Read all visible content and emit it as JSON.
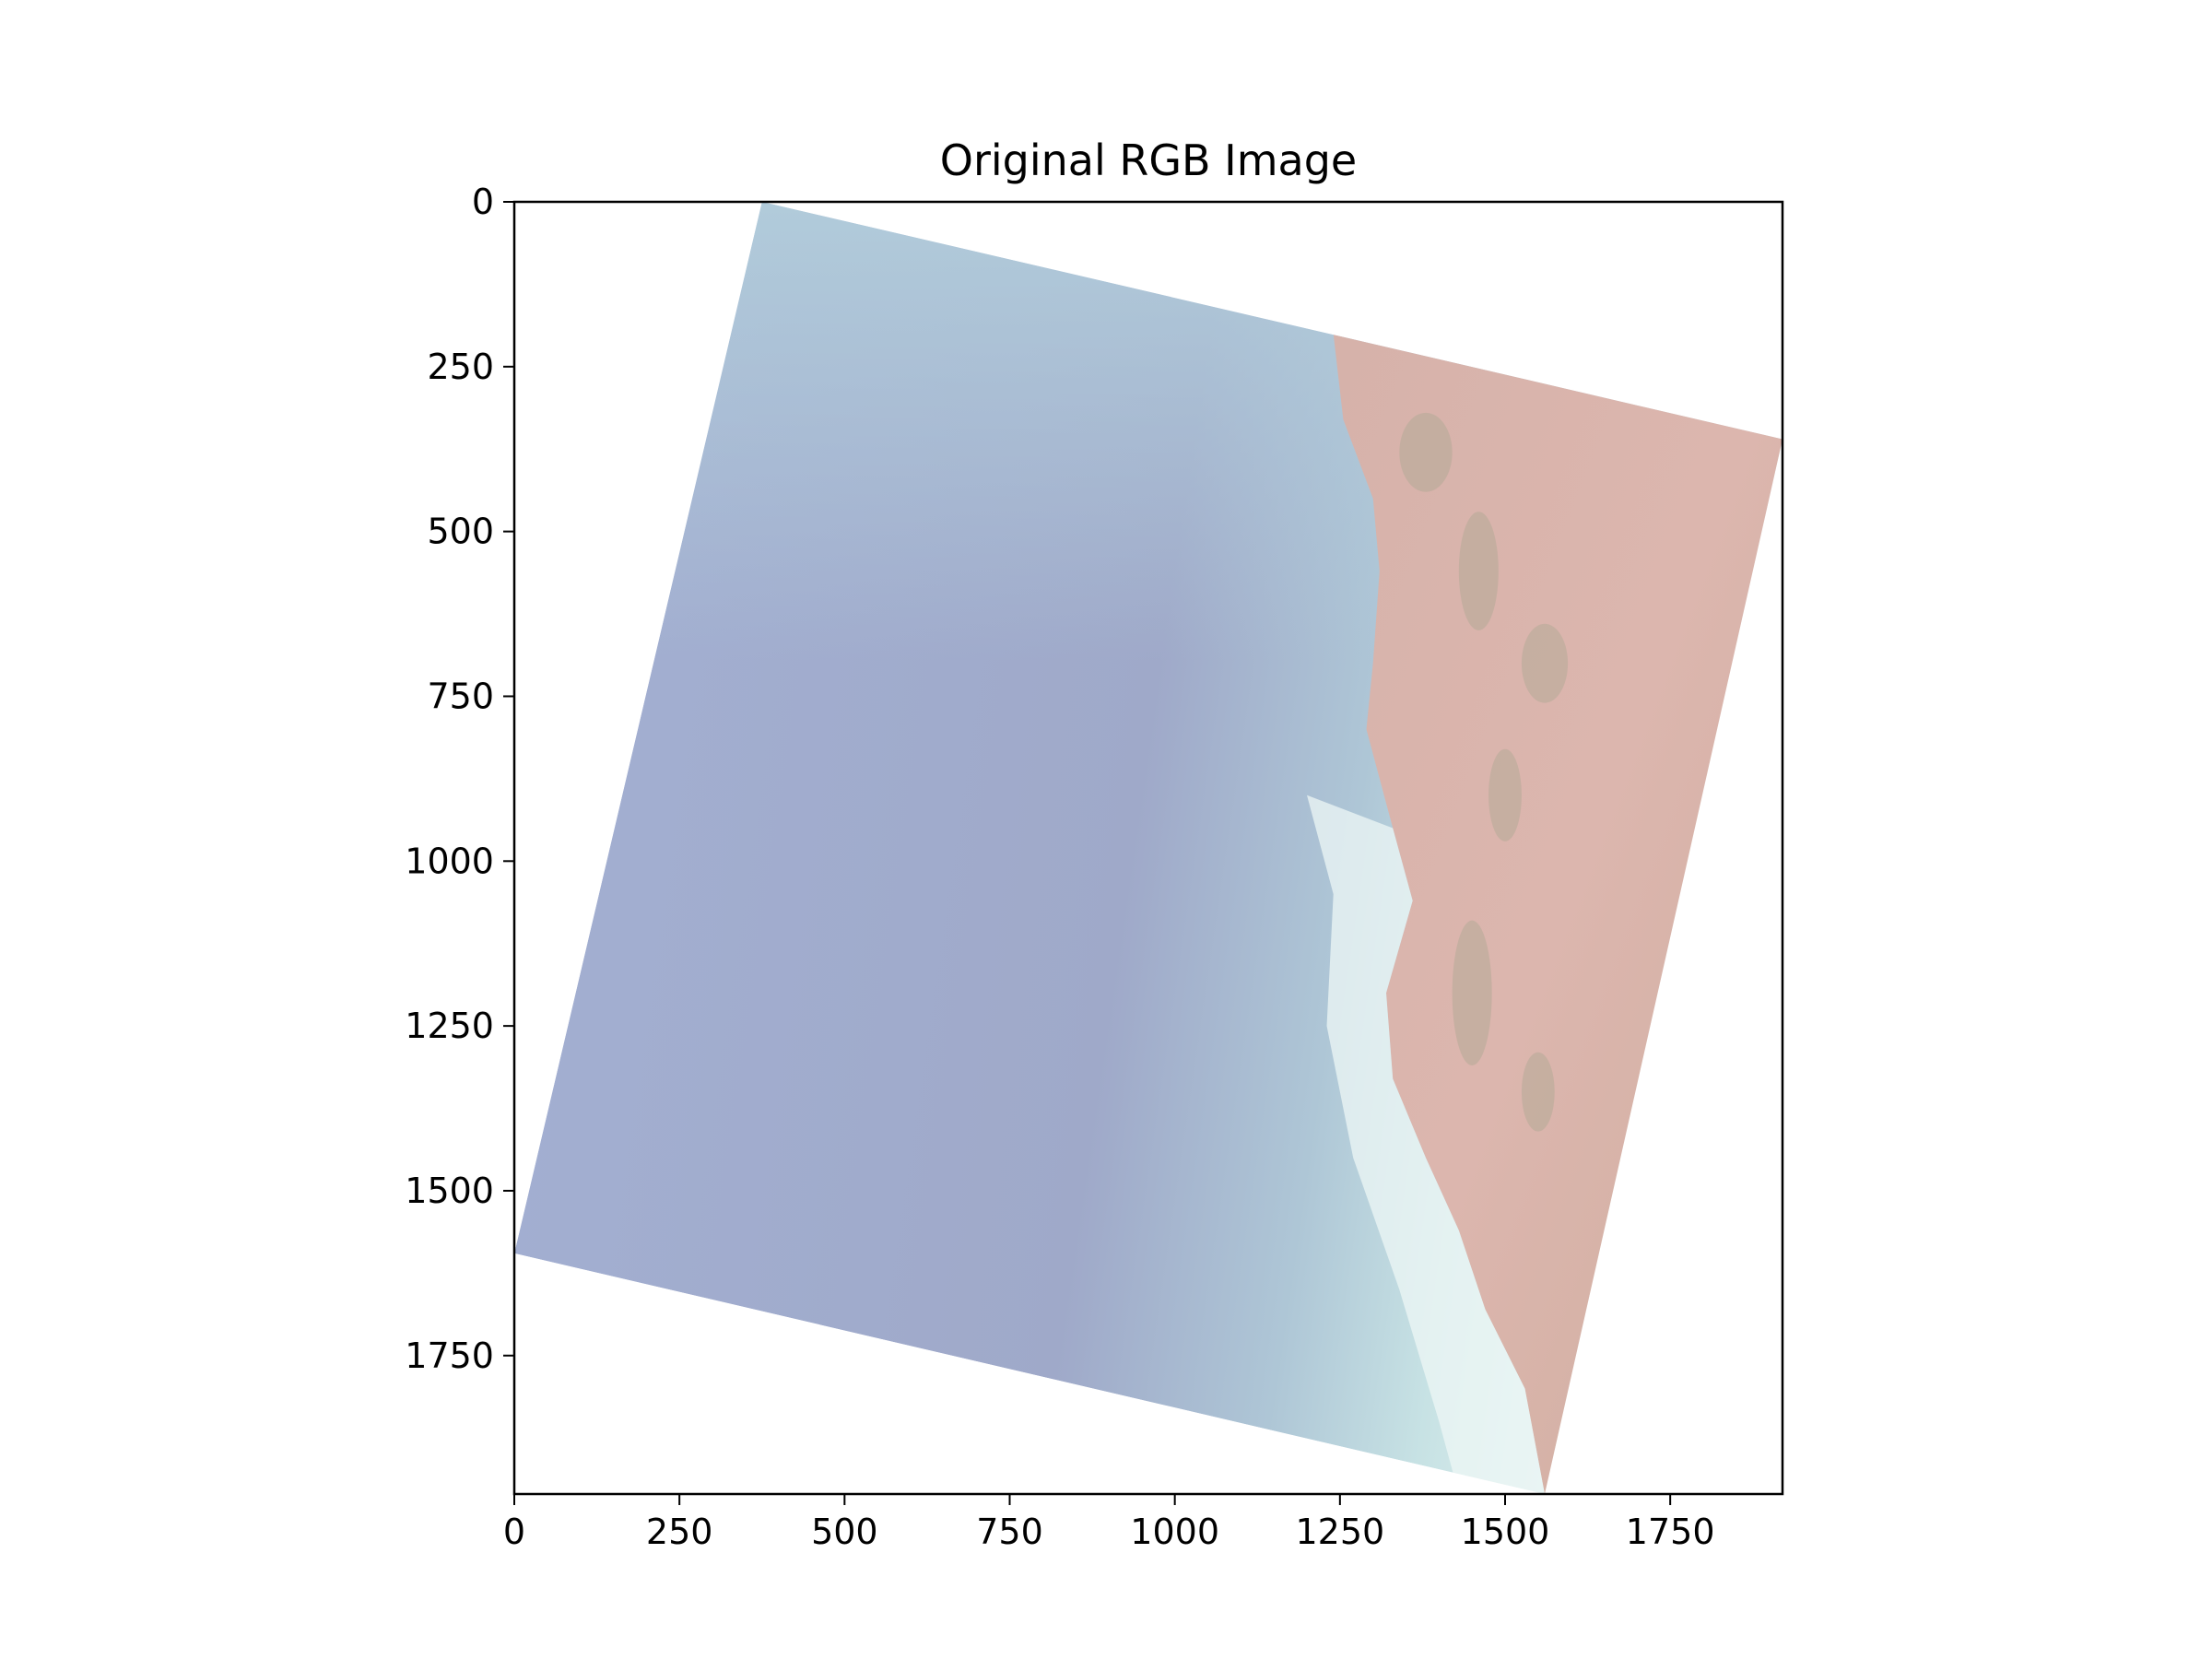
{
  "figure": {
    "title": "Original RGB Image",
    "image_description_colors": {
      "sea_deep": "#a2aed0",
      "sea_shallow": "#b8d8de",
      "surf": "#eef7f6",
      "land": "#dbb3ae",
      "land_veg": "#b9a996"
    }
  },
  "chart_data": {
    "type": "image",
    "title": "Original RGB Image",
    "xlim": [
      0,
      1920
    ],
    "ylim": [
      1960,
      0
    ],
    "x_ticks": [
      0,
      250,
      500,
      750,
      1000,
      1250,
      1500,
      1750
    ],
    "y_ticks": [
      0,
      250,
      500,
      750,
      1000,
      1250,
      1500,
      1750
    ],
    "x_tick_labels": [
      "0",
      "250",
      "500",
      "750",
      "1000",
      "1250",
      "1500",
      "1750"
    ],
    "y_tick_labels": [
      "0",
      "250",
      "500",
      "750",
      "1000",
      "1250",
      "1500",
      "1750"
    ],
    "scene_corners": [
      [
        375,
        0
      ],
      [
        1920,
        360
      ],
      [
        1560,
        1960
      ],
      [
        0,
        1595
      ]
    ],
    "grid": false
  }
}
